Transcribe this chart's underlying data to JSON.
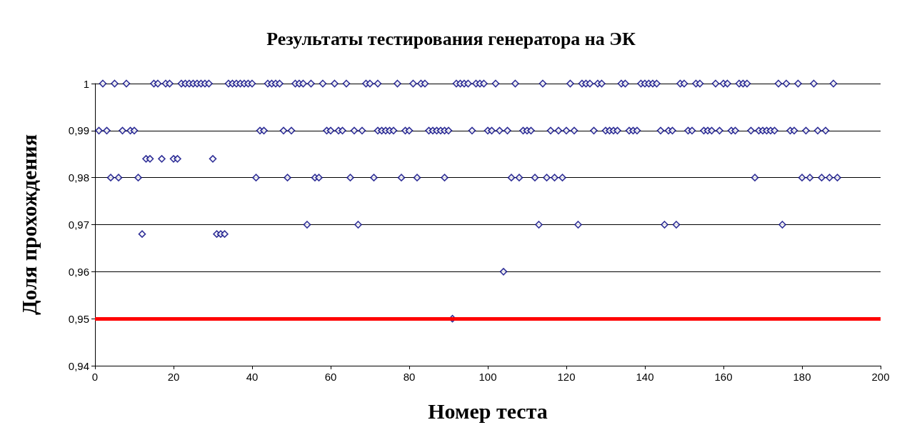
{
  "chart_data": {
    "type": "scatter",
    "title": "Результаты тестирования генератора на ЭК",
    "xlabel": "Номер теста",
    "ylabel": "Доля прохождения",
    "x": [
      2,
      5,
      8,
      15,
      16,
      18,
      19,
      22,
      23,
      24,
      25,
      26,
      27,
      28,
      29,
      34,
      35,
      36,
      37,
      38,
      39,
      40,
      44,
      45,
      46,
      47,
      51,
      52,
      53,
      55,
      58,
      61,
      64,
      69,
      70,
      72,
      77,
      81,
      83,
      84,
      92,
      93,
      94,
      95,
      97,
      98,
      99,
      102,
      107,
      114,
      121,
      124,
      125,
      126,
      128,
      129,
      134,
      135,
      139,
      140,
      141,
      142,
      143,
      149,
      150,
      153,
      154,
      158,
      160,
      161,
      164,
      165,
      166,
      174,
      176,
      179,
      183,
      188,
      1,
      3,
      7,
      9,
      10,
      42,
      43,
      48,
      50,
      59,
      60,
      62,
      63,
      66,
      68,
      72,
      73,
      74,
      75,
      76,
      79,
      80,
      85,
      86,
      87,
      88,
      89,
      90,
      96,
      100,
      101,
      103,
      105,
      109,
      110,
      111,
      116,
      118,
      120,
      122,
      127,
      130,
      131,
      132,
      133,
      136,
      137,
      138,
      144,
      146,
      147,
      151,
      152,
      155,
      156,
      157,
      159,
      162,
      163,
      167,
      169,
      170,
      171,
      172,
      173,
      177,
      178,
      181,
      184,
      186,
      13,
      14,
      17,
      20,
      21,
      30,
      4,
      6,
      11,
      41,
      49,
      56,
      57,
      65,
      71,
      78,
      82,
      89,
      106,
      108,
      112,
      115,
      117,
      119,
      168,
      180,
      182,
      185,
      187,
      189,
      12,
      31,
      32,
      33,
      54,
      67,
      113,
      123,
      145,
      148,
      175,
      104,
      91
    ],
    "values": [
      1,
      1,
      1,
      1,
      1,
      1,
      1,
      1,
      1,
      1,
      1,
      1,
      1,
      1,
      1,
      1,
      1,
      1,
      1,
      1,
      1,
      1,
      1,
      1,
      1,
      1,
      1,
      1,
      1,
      1,
      1,
      1,
      1,
      1,
      1,
      1,
      1,
      1,
      1,
      1,
      1,
      1,
      1,
      1,
      1,
      1,
      1,
      1,
      1,
      1,
      1,
      1,
      1,
      1,
      1,
      1,
      1,
      1,
      1,
      1,
      1,
      1,
      1,
      1,
      1,
      1,
      1,
      1,
      1,
      1,
      1,
      1,
      1,
      1,
      1,
      1,
      1,
      1,
      0.99,
      0.99,
      0.99,
      0.99,
      0.99,
      0.99,
      0.99,
      0.99,
      0.99,
      0.99,
      0.99,
      0.99,
      0.99,
      0.99,
      0.99,
      0.99,
      0.99,
      0.99,
      0.99,
      0.99,
      0.99,
      0.99,
      0.99,
      0.99,
      0.99,
      0.99,
      0.99,
      0.99,
      0.99,
      0.99,
      0.99,
      0.99,
      0.99,
      0.99,
      0.99,
      0.99,
      0.99,
      0.99,
      0.99,
      0.99,
      0.99,
      0.99,
      0.99,
      0.99,
      0.99,
      0.99,
      0.99,
      0.99,
      0.99,
      0.99,
      0.99,
      0.99,
      0.99,
      0.99,
      0.99,
      0.99,
      0.99,
      0.99,
      0.99,
      0.99,
      0.99,
      0.99,
      0.99,
      0.99,
      0.99,
      0.99,
      0.99,
      0.99,
      0.99,
      0.99,
      0.984,
      0.984,
      0.984,
      0.984,
      0.984,
      0.984,
      0.98,
      0.98,
      0.98,
      0.98,
      0.98,
      0.98,
      0.98,
      0.98,
      0.98,
      0.98,
      0.98,
      0.98,
      0.98,
      0.98,
      0.98,
      0.98,
      0.98,
      0.98,
      0.98,
      0.98,
      0.98,
      0.98,
      0.98,
      0.98,
      0.968,
      0.968,
      0.968,
      0.968,
      0.97,
      0.97,
      0.97,
      0.97,
      0.97,
      0.97,
      0.97,
      0.96,
      0.95
    ],
    "color": "#000080",
    "marker": "diamond",
    "xlim": [
      0,
      200
    ],
    "xticks": [
      0,
      20,
      40,
      60,
      80,
      100,
      120,
      140,
      160,
      180,
      200
    ],
    "ylim": [
      0.94,
      1
    ],
    "yticks": [
      {
        "value": 0.94,
        "label": "0,94"
      },
      {
        "value": 0.95,
        "label": "0,95"
      },
      {
        "value": 0.96,
        "label": "0,96"
      },
      {
        "value": 0.97,
        "label": "0,97"
      },
      {
        "value": 0.98,
        "label": "0,98"
      },
      {
        "value": 0.99,
        "label": "0,99"
      },
      1
    ],
    "grid": "y",
    "ref_lines": [
      {
        "axis": "y",
        "value": 0.95,
        "color": "#ff0000"
      }
    ]
  }
}
